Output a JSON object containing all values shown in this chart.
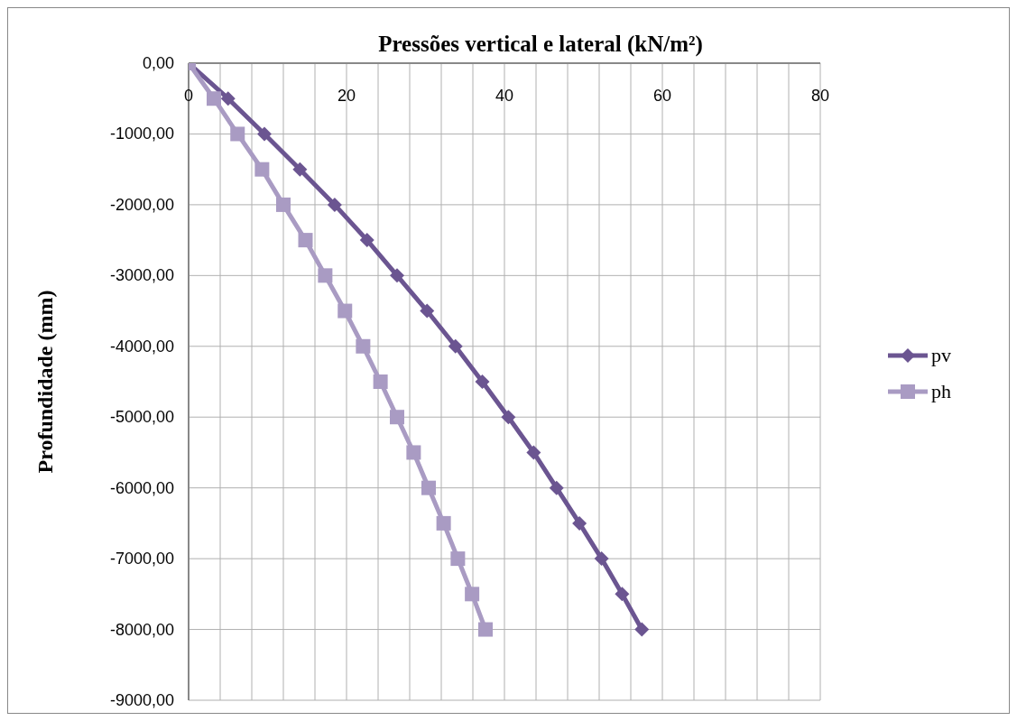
{
  "chart_data": {
    "type": "line",
    "title": "Pressões vertical e lateral (kN/m²)",
    "ylabel": "Profundidade (mm)",
    "xlim": [
      0,
      80
    ],
    "xticks": [
      0,
      {
        "value": 4,
        "label": null
      },
      {
        "value": 8,
        "label": null
      },
      {
        "value": 12,
        "label": null
      },
      {
        "value": 16,
        "label": null
      },
      20,
      {
        "value": 24,
        "label": null
      },
      {
        "value": 28,
        "label": null
      },
      {
        "value": 32,
        "label": null
      },
      {
        "value": 36,
        "label": null
      },
      40,
      {
        "value": 44,
        "label": null
      },
      {
        "value": 48,
        "label": null
      },
      {
        "value": 52,
        "label": null
      },
      {
        "value": 56,
        "label": null
      },
      60,
      {
        "value": 64,
        "label": null
      },
      {
        "value": 68,
        "label": null
      },
      {
        "value": 72,
        "label": null
      },
      {
        "value": 76,
        "label": null
      },
      80
    ],
    "ylim": [
      -9000,
      0
    ],
    "yticks": [
      {
        "value": 0,
        "label": "0,00"
      },
      {
        "value": -1000,
        "label": "-1000,00"
      },
      {
        "value": -2000,
        "label": "-2000,00"
      },
      {
        "value": -3000,
        "label": "-3000,00"
      },
      {
        "value": -4000,
        "label": "-4000,00"
      },
      {
        "value": -5000,
        "label": "-5000,00"
      },
      {
        "value": -6000,
        "label": "-6000,00"
      },
      {
        "value": -7000,
        "label": "-7000,00"
      },
      {
        "value": -8000,
        "label": "-8000,00"
      },
      {
        "value": -9000,
        "label": "-9000,00"
      }
    ],
    "grid": true,
    "legend": "right",
    "line_style": "solid",
    "series": [
      {
        "name": "pv",
        "color": "#6b5591",
        "marker": "diamond",
        "x": [
          0,
          5.0,
          9.6,
          14.1,
          18.5,
          22.6,
          26.4,
          30.2,
          33.8,
          37.2,
          40.5,
          43.7,
          46.6,
          49.5,
          52.3,
          54.9,
          57.4
        ],
        "values": [
          0,
          -500,
          -1000,
          -1500,
          -2000,
          -2500,
          -3000,
          -3500,
          -4000,
          -4500,
          -5000,
          -5500,
          -6000,
          -6500,
          -7000,
          -7500,
          -8000
        ]
      },
      {
        "name": "ph",
        "color": "#a99bc3",
        "marker": "square",
        "x": [
          0,
          3.2,
          6.2,
          9.3,
          12.0,
          14.8,
          17.3,
          19.8,
          22.1,
          24.3,
          26.4,
          28.5,
          30.4,
          32.3,
          34.1,
          35.9,
          37.6
        ],
        "values": [
          0,
          -500,
          -1000,
          -1500,
          -2000,
          -2500,
          -3000,
          -3500,
          -4000,
          -4500,
          -5000,
          -5500,
          -6000,
          -6500,
          -7000,
          -7500,
          -8000
        ]
      }
    ]
  }
}
